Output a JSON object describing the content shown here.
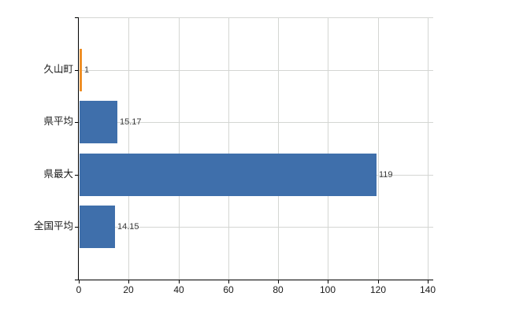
{
  "chart_data": {
    "type": "bar",
    "orientation": "horizontal",
    "title": "",
    "categories": [
      "久山町",
      "県平均",
      "県最大",
      "全国平均"
    ],
    "values": [
      1,
      15.17,
      119,
      14.15
    ],
    "value_labels": [
      "1",
      "15.17",
      "119",
      "14.15"
    ],
    "series_colors": [
      "#ef8f26",
      "#3f6fab",
      "#3f6fab",
      "#3f6fab"
    ],
    "x_ticks": [
      "0",
      "20",
      "40",
      "60",
      "80",
      "100",
      "120",
      "140"
    ],
    "x_tick_values": [
      0,
      20,
      40,
      60,
      80,
      100,
      120,
      140
    ],
    "xlim": [
      0,
      142.2
    ],
    "xlabel": "",
    "ylabel": "",
    "grid": "on",
    "legend_position": "none"
  },
  "colors": {
    "bar_default": "#3f6fab",
    "bar_highlight": "#ef8f26",
    "gridline": "#d4d6d3",
    "axis": "#000000",
    "category_text": "#1a1a1a",
    "value_text": "#3a3a3a",
    "tick_text": "#1a1a1a",
    "background": "#ffffff"
  }
}
